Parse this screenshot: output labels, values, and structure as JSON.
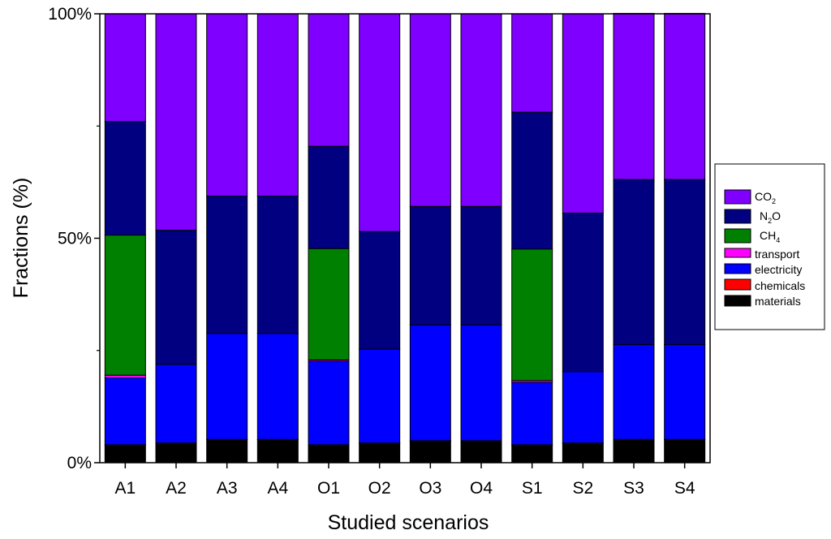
{
  "chart_data": {
    "type": "bar",
    "stacked": true,
    "normalized": true,
    "title": "",
    "xlabel": "Studied scenarios",
    "ylabel": "Fractions (%)",
    "ylim": [
      0,
      100
    ],
    "yticks": [
      "0%",
      "50%",
      "100%"
    ],
    "categories": [
      "A1",
      "A2",
      "A3",
      "A4",
      "O1",
      "O2",
      "O3",
      "O4",
      "S1",
      "S2",
      "S3",
      "S4"
    ],
    "legend_position": "right",
    "series": [
      {
        "key": "materials",
        "name": "materials",
        "color": "#000000",
        "values": [
          3.9,
          4.3,
          5.1,
          5.1,
          3.9,
          4.3,
          4.8,
          4.8,
          3.9,
          4.3,
          5.1,
          5.1
        ]
      },
      {
        "key": "chemicals",
        "name": "chemicals",
        "color": "#ff0000",
        "values": [
          0.1,
          0.1,
          0.1,
          0.1,
          0.1,
          0.1,
          0.1,
          0.1,
          0.1,
          0.1,
          0.1,
          0.1
        ]
      },
      {
        "key": "electricity",
        "name": "electricity",
        "color": "#0000ff",
        "values": [
          14.9,
          17.5,
          23.6,
          23.6,
          18.6,
          20.9,
          25.8,
          25.8,
          13.9,
          15.9,
          21.1,
          21.1
        ]
      },
      {
        "key": "transport",
        "name": "transport",
        "color": "#ff00ff",
        "values": [
          0.6,
          0,
          0,
          0,
          0.3,
          0,
          0,
          0,
          0.4,
          0,
          0,
          0
        ]
      },
      {
        "key": "ch4",
        "name": "CH",
        "sub": "4",
        "color": "#008000",
        "values": [
          31.2,
          0,
          0,
          0,
          24.8,
          0,
          0,
          0,
          29.3,
          0,
          0,
          0
        ]
      },
      {
        "key": "n2o",
        "name": "N",
        "sub": "2",
        "suffix": "O",
        "color": "#000080",
        "values": [
          25.3,
          29.9,
          30.6,
          30.6,
          22.8,
          26.2,
          26.4,
          26.4,
          30.5,
          35.3,
          36.8,
          36.8
        ]
      },
      {
        "key": "co2",
        "name": "CO",
        "sub": "2",
        "color": "#8000ff",
        "values": [
          24.0,
          48.2,
          40.6,
          40.6,
          29.5,
          48.5,
          42.9,
          42.9,
          21.9,
          44.4,
          37.0,
          37.0
        ]
      }
    ],
    "legend_order": [
      "co2",
      "n2o",
      "ch4",
      "transport",
      "electricity",
      "chemicals",
      "materials"
    ]
  }
}
